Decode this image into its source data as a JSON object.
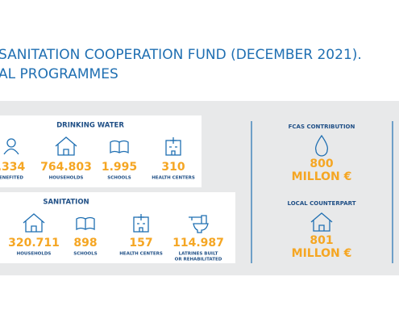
{
  "header": {
    "title_lines": [
      "SANITATION COOPERATION FUND (DECEMBER 2021).",
      "AL PROGRAMMES"
    ]
  },
  "drinking_water": {
    "title": "DRINKING WATER",
    "items": [
      {
        "value": ".334",
        "label": [
          "ENEFITED"
        ]
      },
      {
        "value": "764.803",
        "label": [
          "HOUSEHOLDS"
        ]
      },
      {
        "value": "1.995",
        "label": [
          "SCHOOLS"
        ]
      },
      {
        "value": "310",
        "label": [
          "HEALTH CENTERS"
        ]
      }
    ]
  },
  "sanitation": {
    "title": "SANITATION",
    "items": [
      {
        "value": "320.711",
        "label": [
          "HOUSEHOLDS"
        ]
      },
      {
        "value": "898",
        "label": [
          "SCHOOLS"
        ]
      },
      {
        "value": "157",
        "label": [
          "HEALTH CENTERS"
        ]
      },
      {
        "value": "114.987",
        "label": [
          "LATRINES BUILT",
          "OR REHABILITATED"
        ]
      }
    ]
  },
  "funding": [
    {
      "title": "FCAS CONTRIBUTION",
      "value": "800",
      "unit": "MILLON €"
    },
    {
      "title": "LOCAL COUNTERPART",
      "value": "801",
      "unit": "MILLON €"
    }
  ]
}
